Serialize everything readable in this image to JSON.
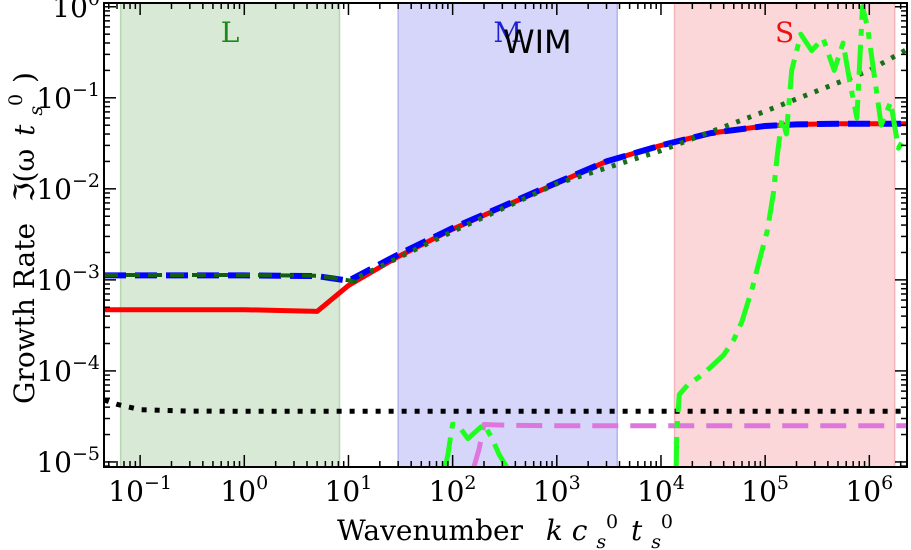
{
  "chart_data": {
    "type": "line",
    "xscale": "log",
    "yscale": "log",
    "xlim": [
      0.045,
      2300000
    ],
    "ylim": [
      8.8e-06,
      1.1
    ],
    "xlabel": {
      "text": "Wavenumber",
      "math": "k c",
      "sub1": "s",
      "sup1": "0",
      "t": "t",
      "sub2": "s",
      "sup2": "0"
    },
    "ylabel": {
      "text": "Growth Rate",
      "math": "ℑ(ω",
      "t": "t",
      "sub": "s",
      "sup": "0",
      "close": ")"
    },
    "x_ticks": [
      {
        "value": 0.1,
        "base": "10",
        "exp": "−1"
      },
      {
        "value": 1,
        "base": "10",
        "exp": "0"
      },
      {
        "value": 10,
        "base": "10",
        "exp": "1"
      },
      {
        "value": 100,
        "base": "10",
        "exp": "2"
      },
      {
        "value": 1000,
        "base": "10",
        "exp": "3"
      },
      {
        "value": 10000,
        "base": "10",
        "exp": "4"
      },
      {
        "value": 100000,
        "base": "10",
        "exp": "5"
      },
      {
        "value": 1000000,
        "base": "10",
        "exp": "6"
      }
    ],
    "y_ticks": [
      {
        "value": 1e-05,
        "base": "10",
        "exp": "−5"
      },
      {
        "value": 0.0001,
        "base": "10",
        "exp": "−4"
      },
      {
        "value": 0.001,
        "base": "10",
        "exp": "−3"
      },
      {
        "value": 0.01,
        "base": "10",
        "exp": "−2"
      },
      {
        "value": 0.1,
        "base": "10",
        "exp": "−1"
      },
      {
        "value": 1,
        "base": "10",
        "exp": "0"
      }
    ],
    "regions": [
      {
        "label": "L",
        "x0": 0.065,
        "x1": 8.2,
        "fill": "#d8ead6",
        "stroke": "#b7d6b2",
        "text_color": "#1a8a1a"
      },
      {
        "label": "M",
        "x0": 30,
        "x1": 3800,
        "fill": "#d6d6fa",
        "stroke": "#b4b4ef",
        "text_color": "#1f1fd6"
      },
      {
        "label": "S",
        "x0": 13500,
        "x1": 1750000,
        "fill": "#fbd7d9",
        "stroke": "#f0b6ba",
        "text_color": "#ee1111"
      }
    ],
    "annotations": [
      {
        "text": "WIM",
        "x": 650,
        "y": 0.42
      }
    ],
    "series": [
      {
        "name": "red-solid",
        "color": "#ff0000",
        "dash": "",
        "width": 5,
        "x": [
          0.045,
          1,
          5,
          10,
          30,
          100,
          300,
          1000,
          3000,
          10000,
          30000,
          100000,
          200000,
          500000,
          1000000,
          2300000
        ],
        "y": [
          0.00047,
          0.00047,
          0.00045,
          0.00087,
          0.0018,
          0.0036,
          0.0063,
          0.0115,
          0.02,
          0.03,
          0.041,
          0.049,
          0.051,
          0.052,
          0.052,
          0.052
        ]
      },
      {
        "name": "blue-dashed",
        "color": "#0000ff",
        "dash": "22 9",
        "width": 6,
        "x": [
          0.045,
          1,
          5,
          10,
          30,
          100,
          300,
          1000,
          3000,
          10000,
          30000,
          100000,
          200000,
          500000,
          1000000,
          2300000
        ],
        "y": [
          0.00112,
          0.00112,
          0.0011,
          0.00098,
          0.0019,
          0.0037,
          0.0064,
          0.0117,
          0.02,
          0.03,
          0.041,
          0.049,
          0.051,
          0.052,
          0.052,
          0.052
        ]
      },
      {
        "name": "darkgreen-dashed",
        "color": "#0f5f0f",
        "dash": "14 8",
        "width": 4,
        "x": [
          0.045,
          1,
          5,
          10,
          12
        ],
        "y": [
          0.00113,
          0.00113,
          0.00111,
          0.00099,
          0.00095
        ]
      },
      {
        "name": "green-dotted",
        "color": "#1a6e1a",
        "dash": "4 8",
        "width": 5,
        "x": [
          10,
          100,
          1000,
          10000,
          100000,
          1000000,
          2300000
        ],
        "y": [
          0.00095,
          0.0034,
          0.0114,
          0.0263,
          0.071,
          0.2,
          0.34
        ]
      },
      {
        "name": "black-dotted",
        "color": "#000000",
        "dash": "5 8",
        "width": 5,
        "x": [
          0.045,
          0.06,
          0.1,
          0.3,
          1,
          100,
          10000,
          2300000
        ],
        "y": [
          4.8e-05,
          4.3e-05,
          3.75e-05,
          3.62e-05,
          3.6e-05,
          3.6e-05,
          3.6e-05,
          3.6e-05
        ]
      },
      {
        "name": "violet-dashed",
        "color": "#dd77dd",
        "dash": "26 12",
        "width": 5,
        "x": [
          160,
          180,
          200,
          250,
          400,
          1000,
          10000,
          100000,
          2300000
        ],
        "y": [
          8.8e-06,
          1.4e-05,
          2.58e-05,
          2.55e-05,
          2.52e-05,
          2.5e-05,
          2.5e-05,
          2.5e-05,
          2.5e-05
        ]
      },
      {
        "name": "lime-dashdot-a",
        "color": "#1eff1e",
        "dash": "30 9 7 9",
        "width": 5,
        "x": [
          85,
          90,
          95,
          100,
          110,
          120,
          140,
          170,
          200,
          240,
          280,
          330
        ],
        "y": [
          8.8e-06,
          1.2e-05,
          1.8e-05,
          2.6e-05,
          2.6e-05,
          2.3e-05,
          1.8e-05,
          2.2e-05,
          2.6e-05,
          1.8e-05,
          1.2e-05,
          8.8e-06
        ]
      },
      {
        "name": "lime-dashdot-b",
        "color": "#1eff1e",
        "dash": "30 9 7 9",
        "width": 5,
        "x": [
          14000,
          14200,
          15000,
          18000,
          23000,
          30000,
          40000,
          50000,
          60000,
          75000,
          90000,
          105000,
          120000,
          130000,
          145000,
          160000,
          180000,
          220000,
          280000,
          360000,
          460000,
          560000,
          650000,
          760000,
          860000,
          960000,
          1100000,
          1300000,
          1600000,
          1900000,
          2300000
        ],
        "y": [
          8.8e-06,
          2.2e-05,
          5.5e-05,
          7e-05,
          8.5e-05,
          0.00011,
          0.00015,
          0.00022,
          0.00035,
          0.0008,
          0.0018,
          0.0035,
          0.009,
          0.022,
          0.06,
          0.04,
          0.2,
          0.5,
          0.33,
          0.45,
          0.2,
          0.4,
          0.15,
          0.06,
          1.0,
          0.6,
          0.2,
          0.05,
          0.09,
          0.028,
          0.04
        ]
      }
    ]
  }
}
